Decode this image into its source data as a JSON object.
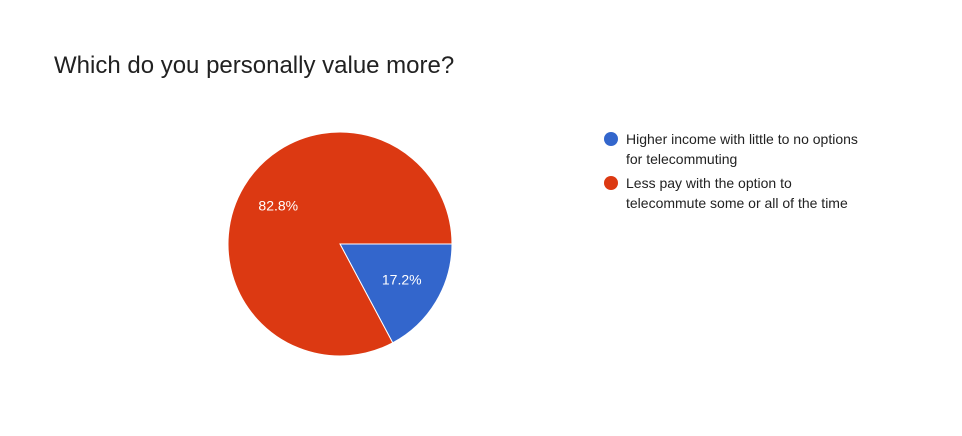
{
  "chart_data": {
    "type": "pie",
    "title": "Which do you personally value more?",
    "categories": [
      "Higher income with little to no options for telecommuting",
      "Less pay with the option to telecommute some or all of the time"
    ],
    "values": [
      17.2,
      82.8
    ],
    "value_labels": [
      "17.2%",
      "82.8%"
    ],
    "colors": [
      "#3366cc",
      "#dc3912"
    ],
    "legend": "right"
  }
}
